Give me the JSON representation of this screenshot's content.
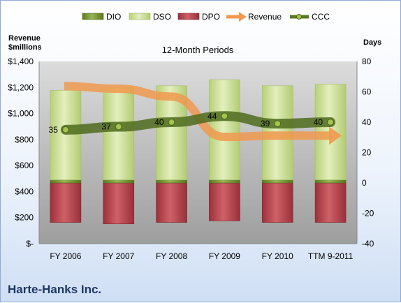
{
  "company": "Harte-Hanks Inc.",
  "chart_data": {
    "type": "bar",
    "title": "12-Month Periods",
    "categories": [
      "FY 2006",
      "FY 2007",
      "FY 2008",
      "FY 2009",
      "FY 2010",
      "TTM 9-2011"
    ],
    "legend": {
      "placement": "top",
      "entries": [
        {
          "name": "DIO",
          "color": "#6f8f2a"
        },
        {
          "name": "DSO",
          "color": "#c9dd90"
        },
        {
          "name": "DPO",
          "color": "#b5424a"
        },
        {
          "name": "Revenue",
          "color": "#f0994e"
        },
        {
          "name": "CCC",
          "color": "#5b7a23"
        }
      ]
    },
    "left_axis": {
      "label_line1": "Revenue",
      "label_line2": "$millions",
      "ylim": [
        0,
        1400
      ],
      "ticks": [
        0,
        200,
        400,
        600,
        800,
        1000,
        1200,
        1400
      ],
      "tick_labels": [
        "$-",
        "$200",
        "$400",
        "$600",
        "$800",
        "$1,000",
        "$1,200",
        "$1,400"
      ]
    },
    "right_axis": {
      "label": "Days",
      "ylim": [
        -40,
        80
      ],
      "ticks": [
        -40,
        -20,
        0,
        20,
        40,
        60,
        80
      ],
      "tick_labels": [
        "-40",
        "-20",
        "0",
        "20",
        "40",
        "60",
        "80"
      ]
    },
    "series": [
      {
        "name": "DIO",
        "axis": "right",
        "kind": "stacked-bar-up",
        "values": [
          2,
          2,
          2,
          2,
          2,
          2
        ]
      },
      {
        "name": "DSO",
        "axis": "right",
        "kind": "stacked-bar-up",
        "values": [
          59,
          61,
          62,
          66,
          62,
          63
        ]
      },
      {
        "name": "DPO",
        "axis": "right",
        "kind": "bar-down",
        "values": [
          -26,
          -27,
          -26,
          -25,
          -26,
          -26
        ]
      },
      {
        "name": "Revenue",
        "axis": "left",
        "kind": "line",
        "values": [
          1210,
          1190,
          1130,
          820,
          830,
          830
        ]
      },
      {
        "name": "CCC",
        "axis": "right",
        "kind": "line",
        "values": [
          35,
          37,
          40,
          44,
          39,
          40
        ],
        "labels": [
          "35",
          "37",
          "40",
          "44",
          "39",
          "40"
        ]
      }
    ],
    "grid": false
  }
}
